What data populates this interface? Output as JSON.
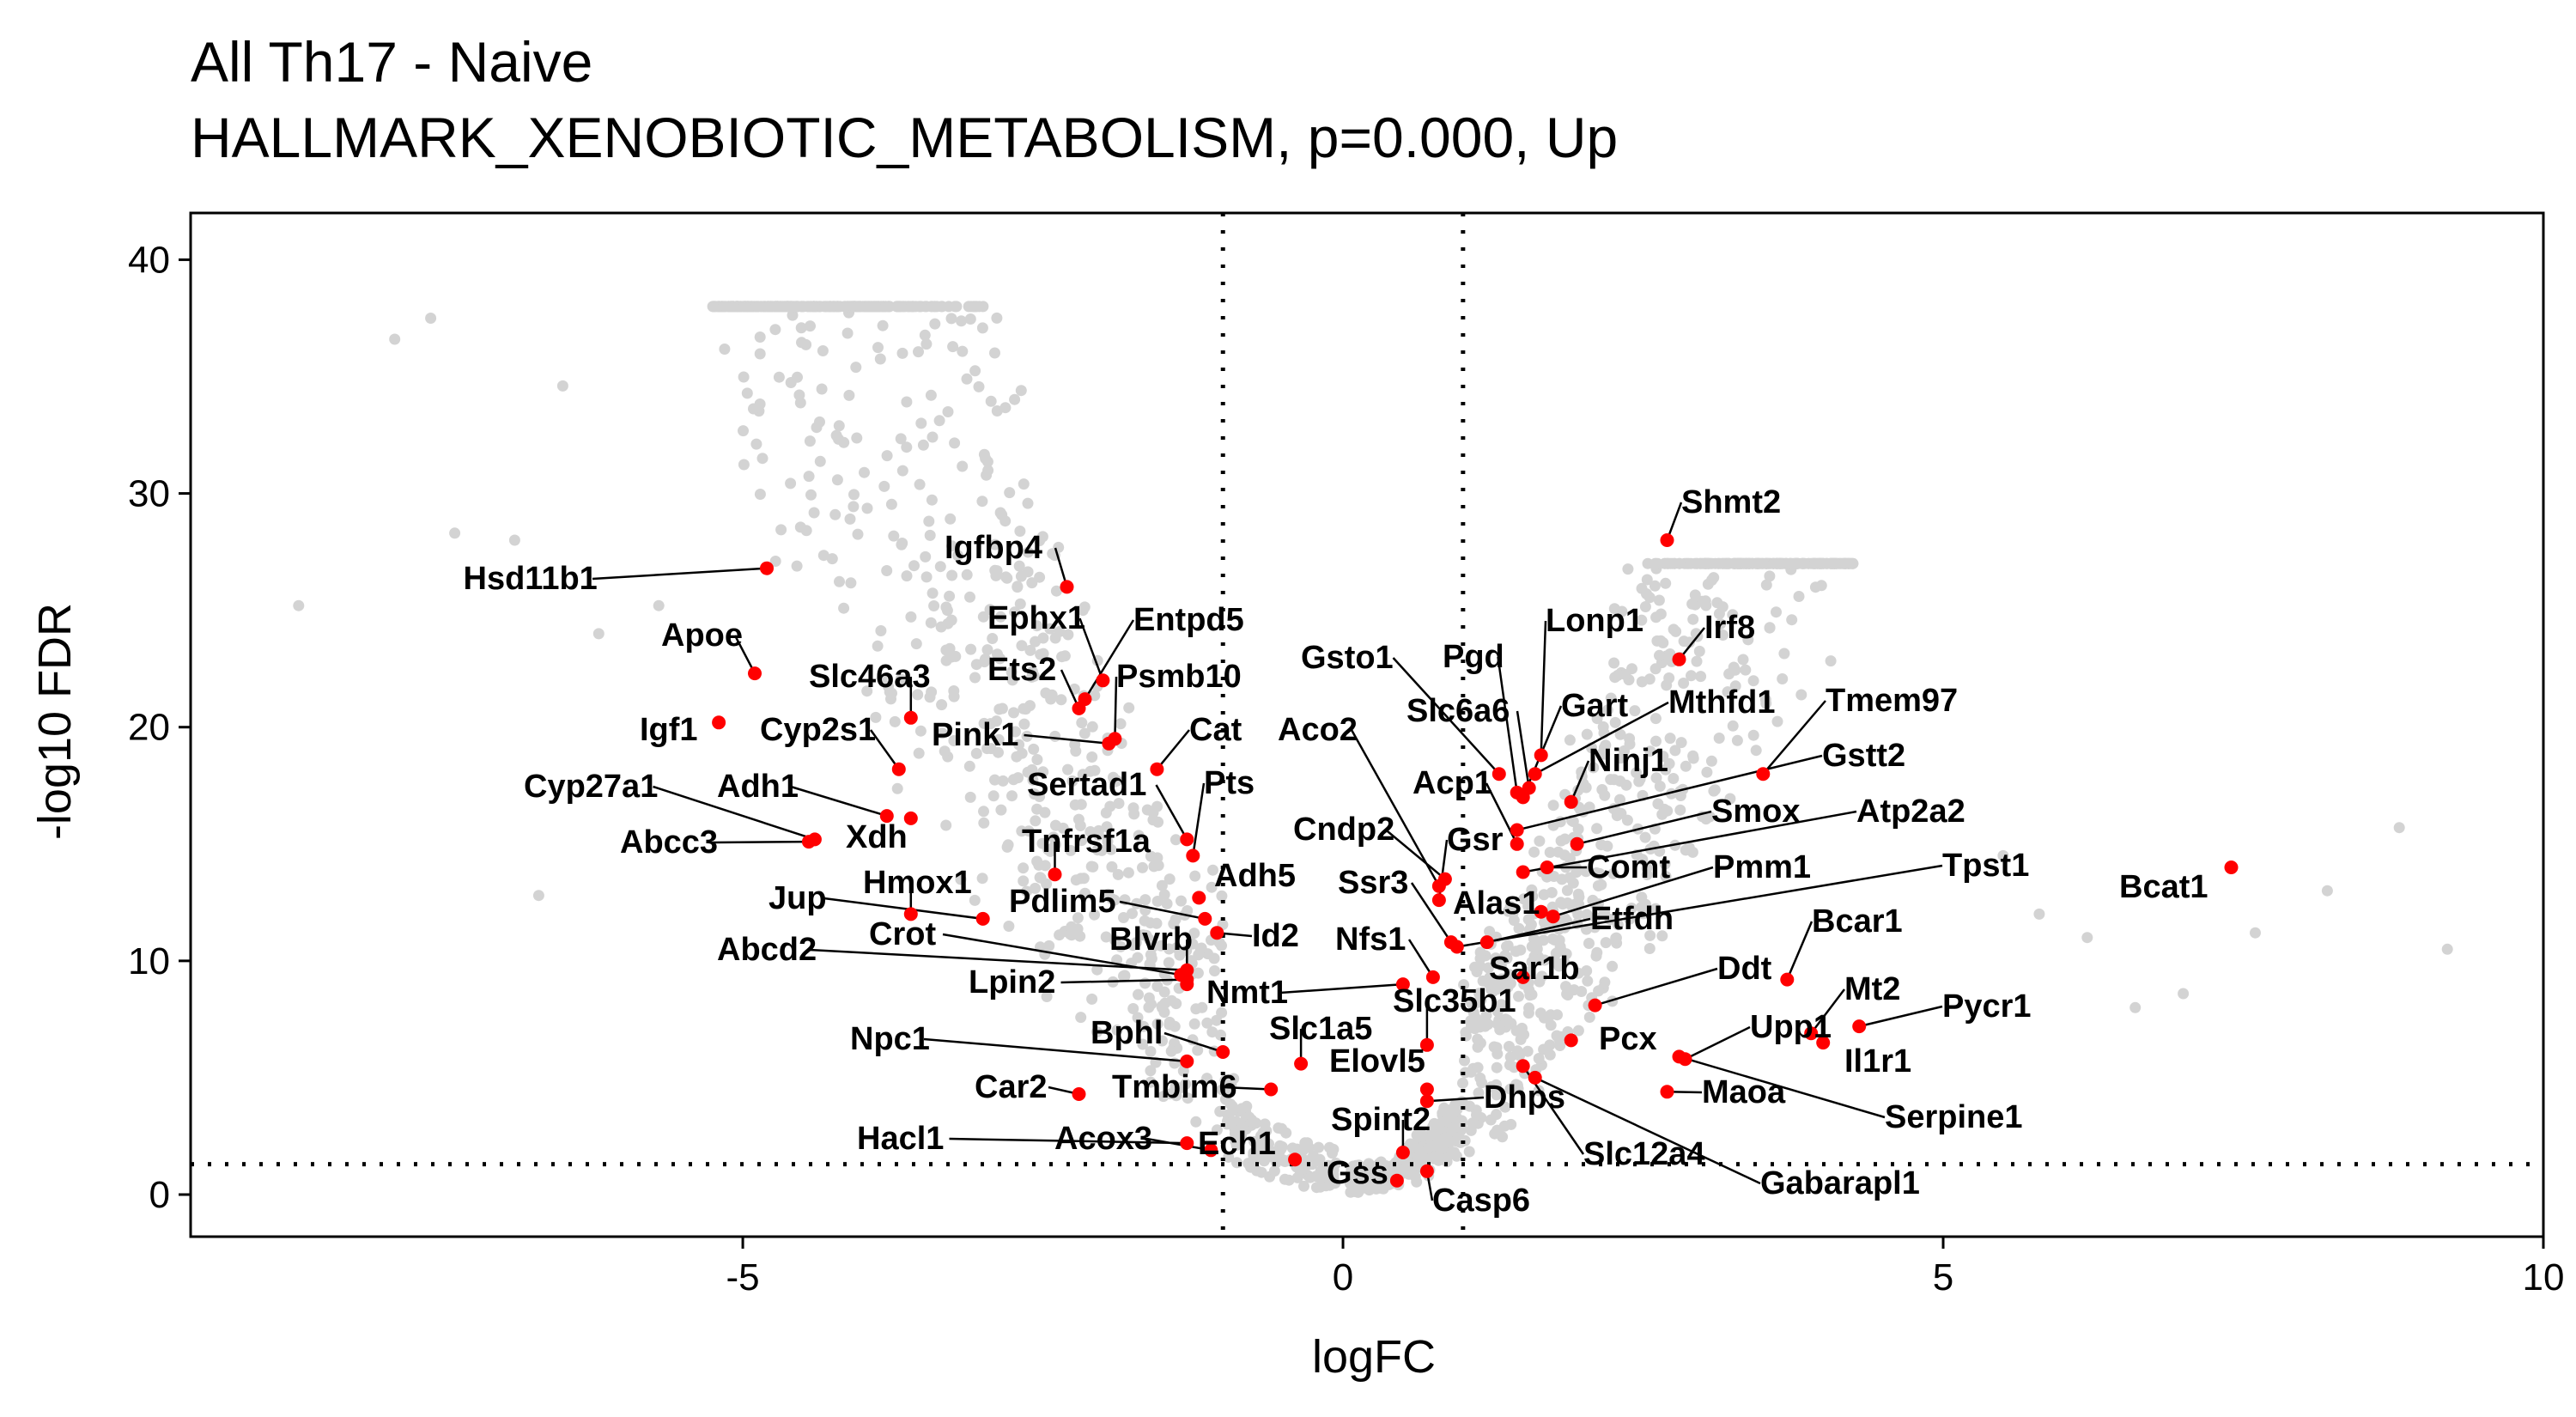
{
  "chart_data": {
    "type": "scatter",
    "title": "All Th17 - Naive",
    "subtitle": "HALLMARK_XENOBIOTIC_METABOLISM, p=0.000, Up",
    "xlabel": "logFC",
    "ylabel": "-log10 FDR",
    "xlim": [
      -9.6,
      10
    ],
    "ylim": [
      -1.8,
      42
    ],
    "xticks": [
      "-5",
      "0",
      "5",
      "10"
    ],
    "yticks": [
      "0",
      "10",
      "20",
      "30",
      "40"
    ],
    "thresholds": {
      "x": [
        -1,
        1
      ],
      "y": 1.3
    },
    "grid": false,
    "legend": "none",
    "colors": {
      "background": "#d3d3d3",
      "highlight": "#ff0000",
      "threshold_line": "#000000"
    },
    "highlighted_genes": [
      {
        "gene": "Hsd11b1",
        "x": -4.8,
        "y": 26.8
      },
      {
        "gene": "Igfbp4",
        "x": -2.3,
        "y": 26.0
      },
      {
        "gene": "Apoe",
        "x": -4.9,
        "y": 22.3
      },
      {
        "gene": "Ephx1",
        "x": -2.0,
        "y": 22.0
      },
      {
        "gene": "Entpd5",
        "x": -2.15,
        "y": 21.2
      },
      {
        "gene": "Ets2",
        "x": -2.2,
        "y": 20.8
      },
      {
        "gene": "Psmb10",
        "x": -1.9,
        "y": 19.5
      },
      {
        "gene": "Slc46a3",
        "x": -3.6,
        "y": 20.4
      },
      {
        "gene": "Igf1",
        "x": -5.2,
        "y": 20.2
      },
      {
        "gene": "Pink1",
        "x": -1.95,
        "y": 19.3
      },
      {
        "gene": "Cat",
        "x": -1.55,
        "y": 18.2
      },
      {
        "gene": "Cyp2s1",
        "x": -3.7,
        "y": 18.2
      },
      {
        "gene": "Sertad1",
        "x": -1.3,
        "y": 15.2
      },
      {
        "gene": "Pts",
        "x": -1.25,
        "y": 14.5
      },
      {
        "gene": "Cyp27a1",
        "x": -4.4,
        "y": 15.2
      },
      {
        "gene": "Adh1",
        "x": -3.8,
        "y": 16.2
      },
      {
        "gene": "Xdh",
        "x": -3.6,
        "y": 16.1
      },
      {
        "gene": "Abcc3",
        "x": -4.45,
        "y": 15.1
      },
      {
        "gene": "Tnfrsf1a",
        "x": -2.4,
        "y": 13.7
      },
      {
        "gene": "Hmox1",
        "x": -3.6,
        "y": 12.0
      },
      {
        "gene": "Jup",
        "x": -3.0,
        "y": 11.8
      },
      {
        "gene": "Adh5",
        "x": -1.2,
        "y": 12.7
      },
      {
        "gene": "Pdlim5",
        "x": -1.15,
        "y": 11.8
      },
      {
        "gene": "Id2",
        "x": -1.05,
        "y": 11.2
      },
      {
        "gene": "Abcd2",
        "x": -1.3,
        "y": 9.6
      },
      {
        "gene": "Crot",
        "x": -1.35,
        "y": 9.4
      },
      {
        "gene": "Blvrb",
        "x": -1.3,
        "y": 9.0
      },
      {
        "gene": "Lpin2",
        "x": -1.3,
        "y": 9.2
      },
      {
        "gene": "Nmt1",
        "x": 0.5,
        "y": 9.0
      },
      {
        "gene": "Npc1",
        "x": -1.3,
        "y": 5.7
      },
      {
        "gene": "Bphl",
        "x": -1.0,
        "y": 6.1
      },
      {
        "gene": "Slc1a5",
        "x": -0.35,
        "y": 5.6
      },
      {
        "gene": "Car2",
        "x": -2.2,
        "y": 4.3
      },
      {
        "gene": "Tmbim6",
        "x": -0.6,
        "y": 4.5
      },
      {
        "gene": "Elovl5",
        "x": 0.7,
        "y": 4.5
      },
      {
        "gene": "Hacl1",
        "x": -1.3,
        "y": 2.2
      },
      {
        "gene": "Acox3",
        "x": -1.1,
        "y": 1.9
      },
      {
        "gene": "Ech1",
        "x": -0.4,
        "y": 1.5
      },
      {
        "gene": "Spint2",
        "x": 0.5,
        "y": 1.8
      },
      {
        "gene": "Gss",
        "x": 0.45,
        "y": 0.6
      },
      {
        "gene": "Casp6",
        "x": 0.7,
        "y": 1.0
      },
      {
        "gene": "Shmt2",
        "x": 2.7,
        "y": 28.0
      },
      {
        "gene": "Lonp1",
        "x": 1.65,
        "y": 18.8
      },
      {
        "gene": "Irf8",
        "x": 2.8,
        "y": 22.9
      },
      {
        "gene": "Pgd",
        "x": 1.45,
        "y": 17.2
      },
      {
        "gene": "Gsto1",
        "x": 1.3,
        "y": 18.0
      },
      {
        "gene": "Slc6a6",
        "x": 1.55,
        "y": 17.4
      },
      {
        "gene": "Gart",
        "x": 1.5,
        "y": 17.0
      },
      {
        "gene": "Mthfd1",
        "x": 1.6,
        "y": 18.0
      },
      {
        "gene": "Tmem97",
        "x": 3.5,
        "y": 18.0
      },
      {
        "gene": "Ninj1",
        "x": 1.9,
        "y": 16.8
      },
      {
        "gene": "Gstt2",
        "x": 1.45,
        "y": 15.6
      },
      {
        "gene": "Aco2",
        "x": 0.8,
        "y": 13.2
      },
      {
        "gene": "Acp1",
        "x": 1.45,
        "y": 15.0
      },
      {
        "gene": "Smox",
        "x": 1.95,
        "y": 15.0
      },
      {
        "gene": "Atp2a2",
        "x": 1.5,
        "y": 13.8
      },
      {
        "gene": "Cndp2",
        "x": 0.85,
        "y": 13.5
      },
      {
        "gene": "Gsr",
        "x": 0.8,
        "y": 12.6
      },
      {
        "gene": "Comt",
        "x": 1.7,
        "y": 14.0
      },
      {
        "gene": "Pmm1",
        "x": 1.75,
        "y": 11.9
      },
      {
        "gene": "Tpst1",
        "x": 0.95,
        "y": 10.6
      },
      {
        "gene": "Ssr3",
        "x": 0.9,
        "y": 10.8
      },
      {
        "gene": "Alas1",
        "x": 1.65,
        "y": 12.1
      },
      {
        "gene": "Nfs1",
        "x": 0.75,
        "y": 9.3
      },
      {
        "gene": "Etfdh",
        "x": 1.2,
        "y": 10.8
      },
      {
        "gene": "Bcat1",
        "x": 7.4,
        "y": 14.0
      },
      {
        "gene": "Bcar1",
        "x": 3.7,
        "y": 9.2
      },
      {
        "gene": "Sar1b",
        "x": 1.5,
        "y": 9.3
      },
      {
        "gene": "Ddt",
        "x": 2.1,
        "y": 8.1
      },
      {
        "gene": "Slc35b1",
        "x": 0.7,
        "y": 6.4
      },
      {
        "gene": "Mt2",
        "x": 3.9,
        "y": 6.9
      },
      {
        "gene": "Pycr1",
        "x": 4.3,
        "y": 7.2
      },
      {
        "gene": "Pcx",
        "x": 1.9,
        "y": 6.6
      },
      {
        "gene": "Upp1",
        "x": 2.85,
        "y": 5.8
      },
      {
        "gene": "Il1r1",
        "x": 4.0,
        "y": 6.5
      },
      {
        "gene": "Dhps",
        "x": 0.7,
        "y": 4.0
      },
      {
        "gene": "Maoa",
        "x": 2.7,
        "y": 4.4
      },
      {
        "gene": "Serpine1",
        "x": 2.8,
        "y": 5.9
      },
      {
        "gene": "Slc12a4",
        "x": 1.5,
        "y": 5.5
      },
      {
        "gene": "Gabarapl1",
        "x": 1.6,
        "y": 5.0
      }
    ]
  }
}
